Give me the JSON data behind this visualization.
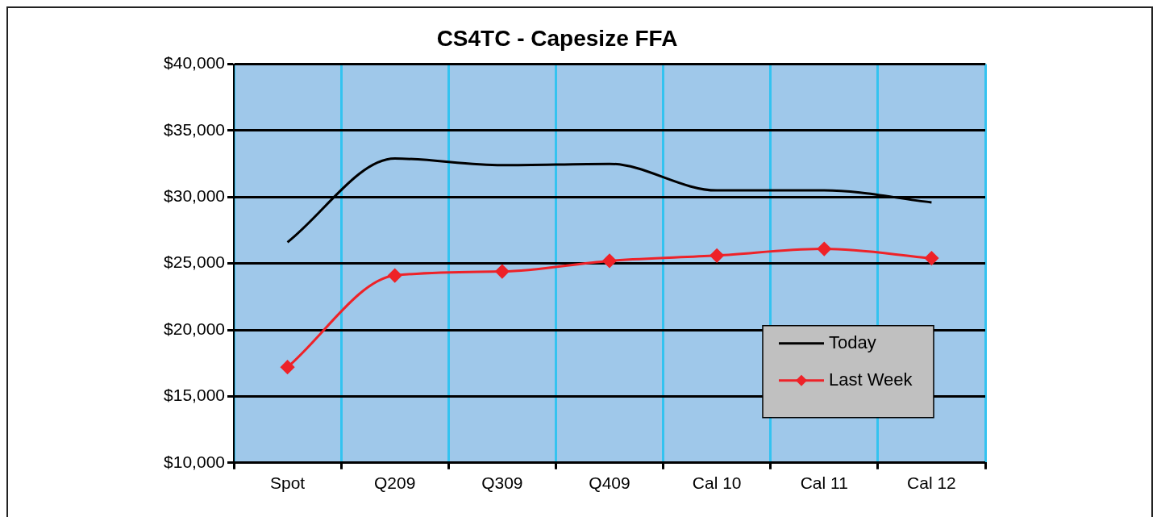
{
  "chart_data": {
    "type": "line",
    "title": "CS4TC - Capesize FFA",
    "categories": [
      "Spot",
      "Q209",
      "Q309",
      "Q409",
      "Cal 10",
      "Cal 11",
      "Cal 12"
    ],
    "series": [
      {
        "name": "Today",
        "color": "#000000",
        "marker": "none",
        "values": [
          26600,
          32900,
          32400,
          32500,
          30500,
          30500,
          29600
        ]
      },
      {
        "name": "Last Week",
        "color": "#ee2228",
        "marker": "diamond",
        "values": [
          17200,
          24100,
          24400,
          25200,
          25600,
          26100,
          25400
        ]
      }
    ],
    "ylim": [
      10000,
      40000
    ],
    "yticks": [
      {
        "value": 10000,
        "label": "$10,000"
      },
      {
        "value": 15000,
        "label": "$15,000"
      },
      {
        "value": 20000,
        "label": "$20,000"
      },
      {
        "value": 25000,
        "label": "$25,000"
      },
      {
        "value": 30000,
        "label": "$30,000"
      },
      {
        "value": 35000,
        "label": "$35,000"
      },
      {
        "value": 40000,
        "label": "$40,000"
      }
    ],
    "grid": true,
    "legend": "bottom right",
    "line_style": "solid"
  }
}
